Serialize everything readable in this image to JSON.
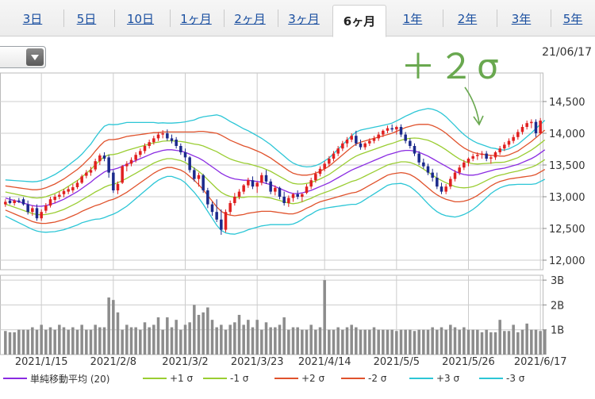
{
  "tabs": [
    {
      "label": "3日",
      "active": false
    },
    {
      "label": "5日",
      "active": false
    },
    {
      "label": "10日",
      "active": false
    },
    {
      "label": "1ヶ月",
      "active": false
    },
    {
      "label": "2ヶ月",
      "active": false
    },
    {
      "label": "3ヶ月",
      "active": false
    },
    {
      "label": "6ヶ月",
      "active": true
    },
    {
      "label": "1年",
      "active": false
    },
    {
      "label": "2年",
      "active": false
    },
    {
      "label": "3年",
      "active": false
    },
    {
      "label": "5年",
      "active": false
    }
  ],
  "date_label": "21/06/17",
  "annotation": "＋２σ",
  "legend": [
    {
      "label": "単純移動平均 (20)",
      "color": "#8a2be2"
    },
    {
      "label": "+1 σ",
      "color": "#9acd32"
    },
    {
      "label": "-1 σ",
      "color": "#9acd32"
    },
    {
      "label": "+2 σ",
      "color": "#e0522c"
    },
    {
      "label": "-2 σ",
      "color": "#e0522c"
    },
    {
      "label": "+3 σ",
      "color": "#2cc6d6"
    },
    {
      "label": "-3 σ",
      "color": "#2cc6d6"
    }
  ],
  "colors": {
    "up": "#e02020",
    "down": "#1b2a8c",
    "volume": "#8c8c8c",
    "grid": "#cccccc",
    "annotation": "#69a84f"
  },
  "chart_data": {
    "type": "candlestick",
    "y_ticks": [
      "14,500",
      "14,000",
      "13,500",
      "13,000",
      "12,500",
      "12,000"
    ],
    "y_tick_values": [
      14500,
      14000,
      13500,
      13000,
      12500,
      12000
    ],
    "ylim": [
      11850,
      14950
    ],
    "x_ticks": [
      "2021/1/15",
      "2021/2/8",
      "2021/3/2",
      "2021/3/23",
      "2021/4/14",
      "2021/5/5",
      "2021/5/26",
      "2021/6/17"
    ],
    "volume_ticks": [
      "3B",
      "2B",
      "1B"
    ],
    "volume_tick_values": [
      3,
      2,
      1
    ],
    "volume_ylim": [
      0,
      3.1
    ],
    "ohlc": [
      [
        12880,
        12960,
        12840,
        12920
      ],
      [
        12940,
        13000,
        12880,
        12900
      ],
      [
        12900,
        12960,
        12860,
        12940
      ],
      [
        12940,
        12980,
        12900,
        12930
      ],
      [
        12960,
        12990,
        12860,
        12880
      ],
      [
        12880,
        12940,
        12720,
        12760
      ],
      [
        12760,
        12860,
        12700,
        12820
      ],
      [
        12820,
        12880,
        12620,
        12660
      ],
      [
        12660,
        12800,
        12620,
        12760
      ],
      [
        12780,
        12900,
        12740,
        12860
      ],
      [
        12860,
        13000,
        12830,
        12960
      ],
      [
        12950,
        13040,
        12900,
        13000
      ],
      [
        13000,
        13080,
        12960,
        13030
      ],
      [
        13040,
        13120,
        12990,
        13090
      ],
      [
        13080,
        13160,
        13040,
        13120
      ],
      [
        13100,
        13200,
        13060,
        13150
      ],
      [
        13150,
        13260,
        13120,
        13220
      ],
      [
        13220,
        13350,
        13200,
        13320
      ],
      [
        13330,
        13420,
        13290,
        13380
      ],
      [
        13380,
        13470,
        13330,
        13420
      ],
      [
        13430,
        13600,
        13400,
        13560
      ],
      [
        13560,
        13680,
        13500,
        13650
      ],
      [
        13650,
        13700,
        13560,
        13600
      ],
      [
        13620,
        13660,
        13300,
        13380
      ],
      [
        13380,
        13420,
        13060,
        13100
      ],
      [
        13100,
        13240,
        13040,
        13200
      ],
      [
        13220,
        13500,
        13200,
        13480
      ],
      [
        13480,
        13560,
        13400,
        13520
      ],
      [
        13520,
        13620,
        13480,
        13580
      ],
      [
        13580,
        13700,
        13540,
        13660
      ],
      [
        13660,
        13760,
        13620,
        13720
      ],
      [
        13720,
        13840,
        13680,
        13800
      ],
      [
        13800,
        13900,
        13760,
        13860
      ],
      [
        13860,
        13960,
        13820,
        13920
      ],
      [
        13920,
        14020,
        13880,
        13980
      ],
      [
        13980,
        14050,
        13920,
        14000
      ],
      [
        14000,
        14060,
        13880,
        13920
      ],
      [
        13920,
        13980,
        13840,
        13880
      ],
      [
        13900,
        13940,
        13760,
        13800
      ],
      [
        13800,
        13840,
        13660,
        13700
      ],
      [
        13700,
        13760,
        13560,
        13620
      ],
      [
        13620,
        13640,
        13380,
        13420
      ],
      [
        13420,
        13460,
        13240,
        13280
      ],
      [
        13280,
        13380,
        13160,
        13340
      ],
      [
        13340,
        13360,
        13060,
        13100
      ],
      [
        13100,
        13140,
        12820,
        12880
      ],
      [
        12880,
        12920,
        12700,
        12760
      ],
      [
        12760,
        12960,
        12600,
        12640
      ],
      [
        12640,
        12800,
        12400,
        12480
      ],
      [
        12480,
        12800,
        12440,
        12760
      ],
      [
        12760,
        12940,
        12720,
        12900
      ],
      [
        12900,
        13060,
        12860,
        13000
      ],
      [
        13000,
        13120,
        12960,
        13080
      ],
      [
        13080,
        13200,
        13040,
        13180
      ],
      [
        13180,
        13300,
        13140,
        13260
      ],
      [
        13260,
        13320,
        13120,
        13160
      ],
      [
        13160,
        13240,
        13060,
        13220
      ],
      [
        13220,
        13380,
        13180,
        13340
      ],
      [
        13340,
        13420,
        13200,
        13240
      ],
      [
        13240,
        13280,
        13040,
        13080
      ],
      [
        13080,
        13180,
        13020,
        13140
      ],
      [
        13140,
        13160,
        12960,
        13000
      ],
      [
        13000,
        13080,
        12860,
        12900
      ],
      [
        12900,
        13020,
        12840,
        12980
      ],
      [
        12980,
        13060,
        12920,
        13040
      ],
      [
        13040,
        13100,
        12960,
        13000
      ],
      [
        13000,
        13060,
        12920,
        13040
      ],
      [
        13060,
        13200,
        13040,
        13160
      ],
      [
        13160,
        13300,
        13120,
        13260
      ],
      [
        13260,
        13400,
        13220,
        13360
      ],
      [
        13360,
        13480,
        13320,
        13440
      ],
      [
        13440,
        13560,
        13400,
        13520
      ],
      [
        13520,
        13640,
        13480,
        13600
      ],
      [
        13600,
        13720,
        13560,
        13680
      ],
      [
        13680,
        13800,
        13640,
        13760
      ],
      [
        13760,
        13880,
        13720,
        13840
      ],
      [
        13840,
        13940,
        13780,
        13900
      ],
      [
        13900,
        14000,
        13860,
        13960
      ],
      [
        13960,
        14040,
        13800,
        13840
      ],
      [
        13840,
        13900,
        13740,
        13780
      ],
      [
        13780,
        13860,
        13740,
        13840
      ],
      [
        13840,
        13920,
        13800,
        13880
      ],
      [
        13880,
        13960,
        13840,
        13920
      ],
      [
        13920,
        14020,
        13880,
        13980
      ],
      [
        13980,
        14060,
        13940,
        14040
      ],
      [
        14040,
        14120,
        14000,
        14080
      ],
      [
        14080,
        14140,
        14020,
        14060
      ],
      [
        14060,
        14120,
        13980,
        14100
      ],
      [
        14100,
        14140,
        13940,
        13980
      ],
      [
        13980,
        14020,
        13840,
        13880
      ],
      [
        13880,
        13920,
        13760,
        13800
      ],
      [
        13800,
        13840,
        13640,
        13680
      ],
      [
        13680,
        13720,
        13500,
        13540
      ],
      [
        13540,
        13600,
        13440,
        13480
      ],
      [
        13480,
        13520,
        13340,
        13380
      ],
      [
        13380,
        13440,
        13240,
        13300
      ],
      [
        13300,
        13380,
        13120,
        13160
      ],
      [
        13160,
        13220,
        13040,
        13080
      ],
      [
        13080,
        13200,
        13040,
        13160
      ],
      [
        13160,
        13320,
        13120,
        13280
      ],
      [
        13280,
        13420,
        13240,
        13380
      ],
      [
        13380,
        13500,
        13340,
        13460
      ],
      [
        13460,
        13580,
        13420,
        13540
      ],
      [
        13540,
        13620,
        13480,
        13600
      ],
      [
        13600,
        13680,
        13560,
        13640
      ],
      [
        13640,
        13700,
        13580,
        13660
      ],
      [
        13660,
        13720,
        13600,
        13680
      ],
      [
        13680,
        13720,
        13560,
        13600
      ],
      [
        13600,
        13660,
        13520,
        13620
      ],
      [
        13620,
        13720,
        13580,
        13700
      ],
      [
        13700,
        13800,
        13660,
        13760
      ],
      [
        13760,
        13860,
        13720,
        13820
      ],
      [
        13820,
        13920,
        13780,
        13880
      ],
      [
        13880,
        13980,
        13840,
        13940
      ],
      [
        13940,
        14060,
        13900,
        14020
      ],
      [
        14020,
        14140,
        13980,
        14100
      ],
      [
        14100,
        14200,
        14060,
        14160
      ],
      [
        14160,
        14220,
        14080,
        14180
      ],
      [
        14180,
        14220,
        13940,
        14000
      ],
      [
        14000,
        14240,
        13980,
        14200
      ]
    ],
    "ma20": [
      12980,
      12960,
      12940,
      12920,
      12900,
      12880,
      12860,
      12850,
      12850,
      12860,
      12880,
      12900,
      12930,
      12960,
      13000,
      13040,
      13080,
      13130,
      13180,
      13230,
      13290,
      13340,
      13390,
      13420,
      13430,
      13450,
      13480,
      13510,
      13540,
      13570,
      13600,
      13630,
      13660,
      13690,
      13710,
      13730,
      13740,
      13740,
      13730,
      13720,
      13700,
      13670,
      13640,
      13610,
      13570,
      13520,
      13470,
      13420,
      13370,
      13330,
      13300,
      13280,
      13270,
      13260,
      13260,
      13250,
      13240,
      13230,
      13210,
      13190,
      13160,
      13130,
      13100,
      13070,
      13050,
      13050,
      13060,
      13080,
      13100,
      13130,
      13160,
      13190,
      13220,
      13260,
      13300,
      13340,
      13380,
      13420,
      13450,
      13480,
      13510,
      13540,
      13570,
      13600,
      13630,
      13660,
      13680,
      13700,
      13720,
      13730,
      13730,
      13720,
      13700,
      13670,
      13640,
      13600,
      13560,
      13520,
      13480,
      13440,
      13400,
      13370,
      13350,
      13340,
      13340,
      13350,
      13370,
      13390,
      13410,
      13430,
      13440,
      13450,
      13470,
      13490,
      13510,
      13540,
      13570,
      13600,
      13640,
      13690,
      13740
    ],
    "std": [
      95,
      100,
      105,
      110,
      115,
      120,
      125,
      130,
      135,
      140,
      145,
      150,
      155,
      160,
      165,
      170,
      175,
      180,
      190,
      200,
      215,
      230,
      240,
      240,
      235,
      230,
      225,
      220,
      210,
      200,
      190,
      180,
      170,
      160,
      150,
      145,
      140,
      140,
      145,
      150,
      160,
      175,
      190,
      210,
      230,
      250,
      270,
      290,
      300,
      300,
      295,
      290,
      280,
      270,
      260,
      250,
      240,
      230,
      220,
      210,
      200,
      190,
      180,
      170,
      160,
      150,
      140,
      130,
      125,
      120,
      120,
      125,
      130,
      140,
      150,
      160,
      170,
      180,
      190,
      190,
      185,
      180,
      175,
      170,
      165,
      160,
      160,
      165,
      170,
      180,
      190,
      205,
      220,
      235,
      250,
      260,
      265,
      265,
      260,
      250,
      240,
      225,
      210,
      195,
      180,
      165,
      150,
      135,
      120,
      110,
      100,
      95,
      95,
      100,
      105,
      115,
      125,
      135,
      145,
      150,
      155
    ],
    "volume": [
      0.95,
      0.9,
      0.9,
      1.0,
      1.0,
      1.0,
      1.1,
      1.0,
      1.2,
      1.0,
      1.1,
      1.0,
      1.2,
      1.1,
      1.0,
      1.1,
      1.0,
      1.2,
      1.0,
      1.0,
      1.2,
      1.1,
      1.1,
      2.3,
      2.2,
      1.7,
      1.0,
      1.2,
      1.1,
      1.1,
      1.0,
      1.3,
      1.1,
      1.2,
      1.5,
      1.0,
      1.5,
      1.1,
      1.4,
      1.0,
      1.2,
      1.3,
      2.0,
      1.6,
      1.7,
      1.9,
      1.4,
      1.1,
      1.2,
      1.0,
      1.2,
      1.3,
      1.6,
      1.2,
      1.4,
      1.1,
      1.4,
      1.0,
      1.3,
      1.1,
      1.1,
      1.2,
      1.5,
      1.0,
      1.1,
      1.1,
      1.0,
      1.0,
      1.2,
      1.0,
      1.1,
      3.0,
      1.0,
      1.0,
      1.1,
      1.0,
      1.1,
      1.2,
      1.1,
      1.0,
      1.0,
      1.0,
      1.1,
      1.0,
      1.0,
      1.0,
      1.0,
      0.95,
      1.0,
      1.0,
      1.0,
      0.95,
      1.0,
      1.0,
      1.0,
      1.1,
      1.0,
      1.1,
      1.0,
      1.2,
      1.1,
      1.0,
      1.1,
      1.0,
      1.0,
      1.0,
      0.9,
      1.0,
      0.9,
      0.9,
      1.4,
      0.95,
      0.95,
      1.2,
      0.9,
      1.0,
      1.25,
      1.0,
      1.0,
      0.95,
      1.0
    ]
  }
}
